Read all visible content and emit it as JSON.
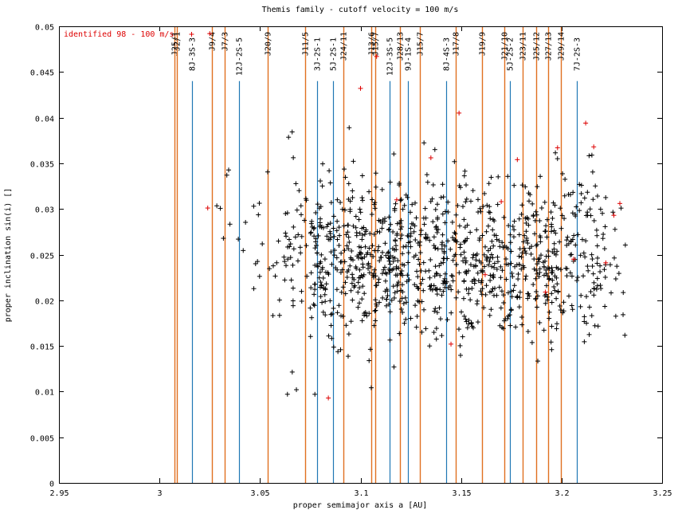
{
  "chart_data": {
    "type": "scatter",
    "title": "Themis family - cutoff velocity = 100 m/s",
    "xlabel": "proper semimajor axis a [AU]",
    "ylabel": "proper inclination sin(i) []",
    "xlim": [
      2.95,
      3.25
    ],
    "ylim": [
      0,
      0.05
    ],
    "x_ticks": [
      "2.95",
      "3",
      "3.05",
      "3.1",
      "3.15",
      "3.2",
      "3.25"
    ],
    "y_ticks": [
      "0",
      "0.005",
      "0.01",
      "0.015",
      "0.02",
      "0.025",
      "0.03",
      "0.035",
      "0.04",
      "0.045",
      "0.05"
    ],
    "legend": {
      "label": "identified 98 - 100 m/s",
      "color": "#dd0000",
      "placement": "top-left"
    },
    "point_color": "#000000",
    "highlight_color": "#dd0000",
    "resonance_colors": {
      "two_body": "#e07020",
      "three_body": "#1f77b4"
    },
    "resonances": [
      {
        "label": "J25/1",
        "a": 3.0075,
        "kind": "two_body",
        "top": 0.05
      },
      {
        "label": "J2/1",
        "a": 3.0085,
        "kind": "two_body",
        "top": 0.05
      },
      {
        "label": "8J-3S-3",
        "a": 3.016,
        "kind": "three_body",
        "top": 0.044
      },
      {
        "label": "J9/4",
        "a": 3.026,
        "kind": "two_body",
        "top": 0.05
      },
      {
        "label": "J7/3",
        "a": 3.0325,
        "kind": "two_body",
        "top": 0.05
      },
      {
        "label": "12J-2S-5",
        "a": 3.0395,
        "kind": "three_body",
        "top": 0.044
      },
      {
        "label": "J20/9",
        "a": 3.054,
        "kind": "two_body",
        "top": 0.05
      },
      {
        "label": "J11/5",
        "a": 3.0725,
        "kind": "two_body",
        "top": 0.05
      },
      {
        "label": "3J-2S-1",
        "a": 3.0785,
        "kind": "three_body",
        "top": 0.044
      },
      {
        "label": "5J-2S-1",
        "a": 3.0865,
        "kind": "three_body",
        "top": 0.044
      },
      {
        "label": "J24/11",
        "a": 3.0915,
        "kind": "two_body",
        "top": 0.05
      },
      {
        "label": "J13/6",
        "a": 3.1055,
        "kind": "two_body",
        "top": 0.05
      },
      {
        "label": "J15/7",
        "a": 3.1075,
        "kind": "two_body",
        "top": 0.05
      },
      {
        "label": "12J-3S-5",
        "a": 3.1145,
        "kind": "three_body",
        "top": 0.044
      },
      {
        "label": "J28/13",
        "a": 3.1195,
        "kind": "two_body",
        "top": 0.05
      },
      {
        "label": "9J-1S-4",
        "a": 3.1235,
        "kind": "three_body",
        "top": 0.044
      },
      {
        "label": "J15/7",
        "a": 3.1295,
        "kind": "two_body",
        "top": 0.05
      },
      {
        "label": "8J-4S-3",
        "a": 3.1425,
        "kind": "three_body",
        "top": 0.044
      },
      {
        "label": "J17/8",
        "a": 3.1475,
        "kind": "two_body",
        "top": 0.05
      },
      {
        "label": "J19/9",
        "a": 3.1605,
        "kind": "two_body",
        "top": 0.05
      },
      {
        "label": "J21/10",
        "a": 3.1715,
        "kind": "two_body",
        "top": 0.05
      },
      {
        "label": "5J-2S-2",
        "a": 3.1745,
        "kind": "three_body",
        "top": 0.044
      },
      {
        "label": "J23/11",
        "a": 3.1805,
        "kind": "two_body",
        "top": 0.05
      },
      {
        "label": "J25/12",
        "a": 3.1875,
        "kind": "two_body",
        "top": 0.05
      },
      {
        "label": "J27/13",
        "a": 3.1935,
        "kind": "two_body",
        "top": 0.05
      },
      {
        "label": "J29/14",
        "a": 3.1995,
        "kind": "two_body",
        "top": 0.05
      },
      {
        "label": "7J-2S-3",
        "a": 3.2075,
        "kind": "three_body",
        "top": 0.044
      }
    ],
    "highlight_points": [
      {
        "x": 3.024,
        "y": 0.0301
      },
      {
        "x": 3.025,
        "y": 0.0492
      },
      {
        "x": 3.084,
        "y": 0.0093
      },
      {
        "x": 3.1,
        "y": 0.0432
      },
      {
        "x": 3.108,
        "y": 0.0467
      },
      {
        "x": 3.118,
        "y": 0.031
      },
      {
        "x": 3.135,
        "y": 0.0356
      },
      {
        "x": 3.145,
        "y": 0.0152
      },
      {
        "x": 3.149,
        "y": 0.0405
      },
      {
        "x": 3.162,
        "y": 0.0228
      },
      {
        "x": 3.17,
        "y": 0.0308
      },
      {
        "x": 3.178,
        "y": 0.0354
      },
      {
        "x": 3.192,
        "y": 0.0209
      },
      {
        "x": 3.198,
        "y": 0.0367
      },
      {
        "x": 3.206,
        "y": 0.0245
      },
      {
        "x": 3.212,
        "y": 0.0394
      },
      {
        "x": 3.216,
        "y": 0.0368
      },
      {
        "x": 3.222,
        "y": 0.0241
      },
      {
        "x": 3.226,
        "y": 0.0293
      },
      {
        "x": 3.229,
        "y": 0.0306
      }
    ],
    "clusters": [
      {
        "x_range": [
          3.028,
          3.046
        ],
        "y_mean": 0.0285,
        "y_sd": 0.0035,
        "count": 9
      },
      {
        "x_range": [
          3.046,
          3.062
        ],
        "y_mean": 0.0245,
        "y_sd": 0.0045,
        "count": 18
      },
      {
        "x_range": [
          3.062,
          3.075
        ],
        "y_mean": 0.026,
        "y_sd": 0.006,
        "count": 45
      },
      {
        "x_range": [
          3.075,
          3.1
        ],
        "y_mean": 0.0245,
        "y_sd": 0.0045,
        "count": 190
      },
      {
        "x_range": [
          3.1,
          3.125
        ],
        "y_mean": 0.0245,
        "y_sd": 0.0042,
        "count": 210
      },
      {
        "x_range": [
          3.125,
          3.15
        ],
        "y_mean": 0.0242,
        "y_sd": 0.0045,
        "count": 170
      },
      {
        "x_range": [
          3.15,
          3.175
        ],
        "y_mean": 0.024,
        "y_sd": 0.0045,
        "count": 175
      },
      {
        "x_range": [
          3.175,
          3.2
        ],
        "y_mean": 0.024,
        "y_sd": 0.0045,
        "count": 180
      },
      {
        "x_range": [
          3.2,
          3.222
        ],
        "y_mean": 0.0245,
        "y_sd": 0.005,
        "count": 110
      },
      {
        "x_range": [
          3.222,
          3.232
        ],
        "y_mean": 0.024,
        "y_sd": 0.0035,
        "count": 14
      }
    ],
    "grid": false
  }
}
